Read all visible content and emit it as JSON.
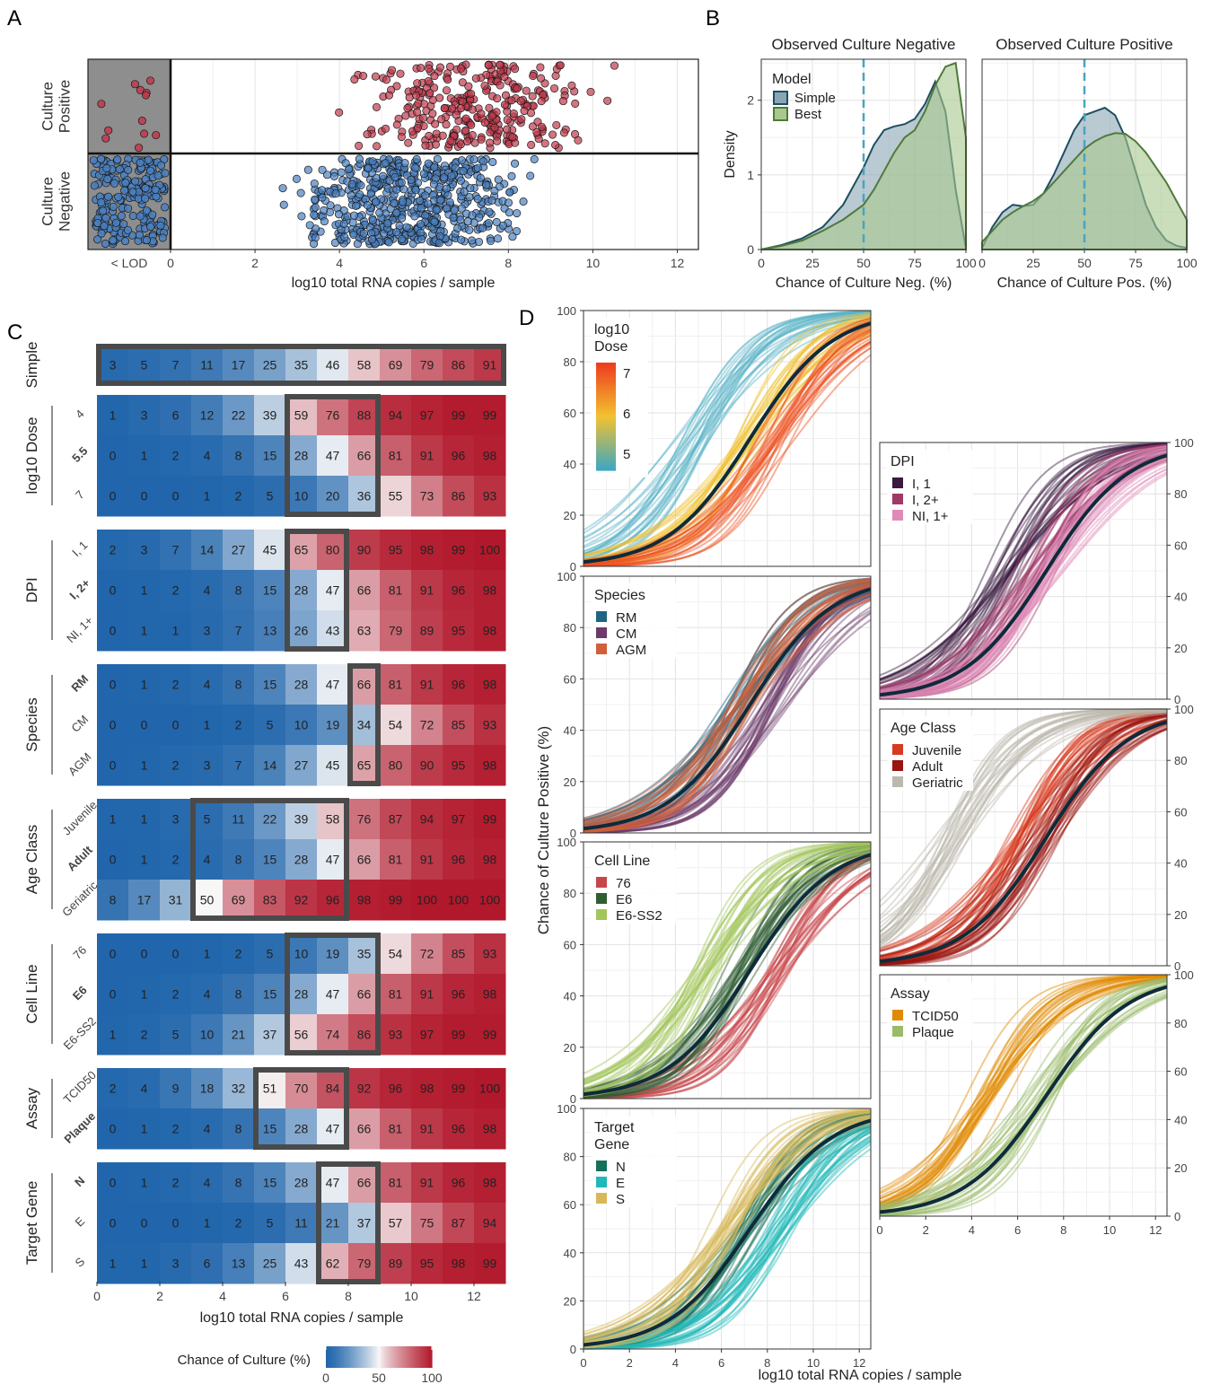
{
  "panel_labels": {
    "a": "A",
    "b": "B",
    "c": "C",
    "d": "D"
  },
  "chart_data": [
    {
      "panel": "A",
      "type": "scatter",
      "xlabel": "log10 total RNA copies / sample",
      "x_ticks": [
        "0",
        "2",
        "4",
        "6",
        "8",
        "10",
        "12"
      ],
      "lod_label": "< LOD",
      "xlim": [
        0,
        12.5
      ],
      "groups": [
        {
          "name": "Culture Positive",
          "label_lines": [
            "Culture",
            "Positive"
          ],
          "color": "#c0394b",
          "below_lod_count": 12,
          "count": 300,
          "x_range": [
            2,
            12.1
          ]
        },
        {
          "name": "Culture Negative",
          "label_lines": [
            "Culture",
            "Negative"
          ],
          "color": "#4a80c0",
          "below_lod_count": 220,
          "count": 560,
          "x_range": [
            0.2,
            11
          ]
        }
      ],
      "colors": {
        "lod_bg": "#8e8e8e",
        "positive": "#c0394b",
        "negative": "#4a80c0"
      }
    },
    {
      "panel": "B",
      "type": "area",
      "facets": [
        "Observed Culture Negative",
        "Observed Culture Positive"
      ],
      "xlabels": [
        "Chance of Culture Neg. (%)",
        "Chance of Culture Pos. (%)"
      ],
      "ylabel": "Density",
      "x_ticks": [
        "0",
        "25",
        "50",
        "75",
        "100"
      ],
      "y_ticks": [
        "0",
        "1",
        "2"
      ],
      "xlim": [
        0,
        100
      ],
      "ylim": [
        0,
        2.55
      ],
      "threshold": 50,
      "legend": {
        "title": "Model",
        "position": "top-left"
      },
      "series": [
        {
          "name": "Simple",
          "color": "#1f4e5f",
          "fill": "#8aa6b5",
          "facet_values": [
            {
              "x": [
                0,
                10,
                20,
                30,
                40,
                45,
                50,
                55,
                60,
                65,
                70,
                75,
                80,
                85,
                90,
                95,
                100
              ],
              "y": [
                0,
                0.06,
                0.15,
                0.3,
                0.6,
                0.85,
                1.1,
                1.4,
                1.6,
                1.65,
                1.68,
                1.75,
                1.95,
                2.25,
                1.85,
                0.8,
                0.02
              ]
            },
            {
              "x": [
                0,
                5,
                10,
                15,
                20,
                25,
                30,
                35,
                40,
                45,
                50,
                55,
                60,
                65,
                70,
                75,
                80,
                85,
                90,
                95,
                100
              ],
              "y": [
                0.02,
                0.3,
                0.5,
                0.6,
                0.58,
                0.6,
                0.75,
                1.0,
                1.3,
                1.6,
                1.8,
                1.85,
                1.9,
                1.8,
                1.5,
                1.05,
                0.6,
                0.3,
                0.12,
                0.05,
                0.02
              ]
            }
          ]
        },
        {
          "name": "Best",
          "color": "#4f7a3a",
          "fill": "#a9c88e",
          "facet_values": [
            {
              "x": [
                0,
                10,
                20,
                30,
                40,
                45,
                50,
                55,
                60,
                65,
                70,
                75,
                80,
                85,
                90,
                95,
                100
              ],
              "y": [
                0,
                0.05,
                0.12,
                0.25,
                0.4,
                0.5,
                0.6,
                0.8,
                1.05,
                1.3,
                1.5,
                1.6,
                1.85,
                2.2,
                2.45,
                2.5,
                1.5
              ]
            },
            {
              "x": [
                0,
                5,
                10,
                15,
                20,
                25,
                30,
                35,
                40,
                45,
                50,
                55,
                60,
                65,
                70,
                75,
                80,
                85,
                90,
                95,
                100
              ],
              "y": [
                0.1,
                0.25,
                0.4,
                0.5,
                0.58,
                0.65,
                0.75,
                0.9,
                1.05,
                1.2,
                1.35,
                1.45,
                1.52,
                1.56,
                1.55,
                1.45,
                1.3,
                1.1,
                0.9,
                0.65,
                0.4
              ]
            }
          ]
        }
      ]
    },
    {
      "panel": "C",
      "type": "heatmap",
      "xlabel": "log10 total RNA copies / sample",
      "x_ticks": [
        "0",
        "2",
        "4",
        "6",
        "8",
        "10",
        "12"
      ],
      "legend": {
        "title": "Chance of Culture (%)",
        "ticks": [
          "0",
          "50",
          "100"
        ]
      },
      "groups": [
        {
          "name": "Simple",
          "rows": [
            {
              "label": "",
              "bold": false,
              "values": [
                3,
                5,
                7,
                11,
                17,
                25,
                35,
                46,
                58,
                69,
                79,
                86,
                91
              ]
            }
          ],
          "box": [
            0,
            13
          ]
        },
        {
          "name": "log10 Dose",
          "rows": [
            {
              "label": "4",
              "bold": false,
              "values": [
                1,
                3,
                6,
                12,
                22,
                39,
                59,
                76,
                88,
                94,
                97,
                99,
                99
              ]
            },
            {
              "label": "5.5",
              "bold": true,
              "values": [
                0,
                1,
                2,
                4,
                8,
                15,
                28,
                47,
                66,
                81,
                91,
                96,
                98
              ]
            },
            {
              "label": "7",
              "bold": false,
              "values": [
                0,
                0,
                0,
                1,
                2,
                5,
                10,
                20,
                36,
                55,
                73,
                86,
                93
              ]
            }
          ],
          "box": [
            6,
            9
          ]
        },
        {
          "name": "DPI",
          "rows": [
            {
              "label": "I, 1",
              "bold": false,
              "values": [
                2,
                3,
                7,
                14,
                27,
                45,
                65,
                80,
                90,
                95,
                98,
                99,
                100
              ]
            },
            {
              "label": "I, 2+",
              "bold": true,
              "values": [
                0,
                1,
                2,
                4,
                8,
                15,
                28,
                47,
                66,
                81,
                91,
                96,
                98
              ]
            },
            {
              "label": "NI, 1+",
              "bold": false,
              "values": [
                0,
                1,
                1,
                3,
                7,
                13,
                26,
                43,
                63,
                79,
                89,
                95,
                98
              ]
            }
          ],
          "box": [
            6,
            8
          ]
        },
        {
          "name": "Species",
          "rows": [
            {
              "label": "RM",
              "bold": true,
              "values": [
                0,
                1,
                2,
                4,
                8,
                15,
                28,
                47,
                66,
                81,
                91,
                96,
                98
              ]
            },
            {
              "label": "CM",
              "bold": false,
              "values": [
                0,
                0,
                0,
                1,
                2,
                5,
                10,
                19,
                34,
                54,
                72,
                85,
                93
              ]
            },
            {
              "label": "AGM",
              "bold": false,
              "values": [
                0,
                1,
                2,
                3,
                7,
                14,
                27,
                45,
                65,
                80,
                90,
                95,
                98
              ]
            }
          ],
          "box": [
            8,
            9
          ]
        },
        {
          "name": "Age Class",
          "rows": [
            {
              "label": "Juvenile",
              "bold": false,
              "values": [
                1,
                1,
                3,
                5,
                11,
                22,
                39,
                58,
                76,
                87,
                94,
                97,
                99
              ]
            },
            {
              "label": "Adult",
              "bold": true,
              "values": [
                0,
                1,
                2,
                4,
                8,
                15,
                28,
                47,
                66,
                81,
                91,
                96,
                98
              ]
            },
            {
              "label": "Geriatric",
              "bold": false,
              "values": [
                8,
                17,
                31,
                50,
                69,
                83,
                92,
                96,
                98,
                99,
                100,
                100,
                100
              ]
            }
          ],
          "box": [
            3,
            8
          ]
        },
        {
          "name": "Cell Line",
          "rows": [
            {
              "label": "76",
              "bold": false,
              "values": [
                0,
                0,
                0,
                1,
                2,
                5,
                10,
                19,
                35,
                54,
                72,
                85,
                93
              ]
            },
            {
              "label": "E6",
              "bold": true,
              "values": [
                0,
                1,
                2,
                4,
                8,
                15,
                28,
                47,
                66,
                81,
                91,
                96,
                98
              ]
            },
            {
              "label": "E6-SS2",
              "bold": false,
              "values": [
                1,
                2,
                5,
                10,
                21,
                37,
                56,
                74,
                86,
                93,
                97,
                99,
                99
              ]
            }
          ],
          "box": [
            6,
            9
          ]
        },
        {
          "name": "Assay",
          "rows": [
            {
              "label": "TCID50",
              "bold": false,
              "values": [
                2,
                4,
                9,
                18,
                32,
                51,
                70,
                84,
                92,
                96,
                98,
                99,
                100
              ]
            },
            {
              "label": "Plaque",
              "bold": true,
              "values": [
                0,
                1,
                2,
                4,
                8,
                15,
                28,
                47,
                66,
                81,
                91,
                96,
                98
              ]
            }
          ],
          "box": [
            5,
            8
          ]
        },
        {
          "name": "Target Gene",
          "rows": [
            {
              "label": "N",
              "bold": true,
              "values": [
                0,
                1,
                2,
                4,
                8,
                15,
                28,
                47,
                66,
                81,
                91,
                96,
                98
              ]
            },
            {
              "label": "E",
              "bold": false,
              "values": [
                0,
                0,
                0,
                1,
                2,
                5,
                11,
                21,
                37,
                57,
                75,
                87,
                94
              ]
            },
            {
              "label": "S",
              "bold": false,
              "values": [
                1,
                1,
                3,
                6,
                13,
                25,
                43,
                62,
                79,
                89,
                95,
                98,
                99
              ]
            }
          ],
          "box": [
            7,
            9
          ]
        }
      ]
    },
    {
      "panel": "D",
      "type": "line",
      "xlabel": "log10 total RNA copies / sample",
      "ylabel": "Chance of Culture Positive (%)",
      "x_ticks": [
        "0",
        "2",
        "4",
        "6",
        "8",
        "10",
        "12"
      ],
      "y_ticks": [
        "0",
        "20",
        "40",
        "60",
        "80",
        "100"
      ],
      "xlim": [
        0,
        12.5
      ],
      "ylim": [
        0,
        100
      ],
      "reference_curve": {
        "color": "#0d2b3a",
        "midpoint": 7.25,
        "slope": 0.56
      },
      "facets": [
        {
          "legend_title_lines": [
            "log10",
            "Dose"
          ],
          "legend_type": "gradient",
          "gradient_ticks": [
            "5",
            "6",
            "7"
          ],
          "colors": [
            "#3fa7c0",
            "#f2c230",
            "#ee3c1f"
          ],
          "groups": [
            {
              "name": "5",
              "color": "#5ab4c8",
              "midpoint": 4.8
            },
            {
              "name": "6",
              "color": "#f0c030",
              "midpoint": 7.2
            },
            {
              "name": "7",
              "color": "#ee5020",
              "midpoint": 8.3
            }
          ]
        },
        {
          "legend_title_lines": [
            "Species"
          ],
          "groups": [
            {
              "name": "RM",
              "color": "#1f6480",
              "midpoint": 6.8
            },
            {
              "name": "CM",
              "color": "#6d3b6b",
              "midpoint": 8.3
            },
            {
              "name": "AGM",
              "color": "#d0603a",
              "midpoint": 6.9
            }
          ]
        },
        {
          "legend_title_lines": [
            "Cell Line"
          ],
          "groups": [
            {
              "name": "76",
              "color": "#c8454a",
              "midpoint": 8.4
            },
            {
              "name": "E6",
              "color": "#2e5e32",
              "midpoint": 6.9
            },
            {
              "name": "E6-SS2",
              "color": "#a2c65a",
              "midpoint": 5.4
            }
          ]
        },
        {
          "legend_title_lines": [
            "Target",
            "Gene"
          ],
          "groups": [
            {
              "name": "N",
              "color": "#16705a",
              "midpoint": 7.0
            },
            {
              "name": "E",
              "color": "#20b8b8",
              "midpoint": 8.6
            },
            {
              "name": "S",
              "color": "#d8b858",
              "midpoint": 6.3
            }
          ]
        },
        {
          "legend_title_lines": [
            "DPI"
          ],
          "groups": [
            {
              "name": "I, 1",
              "color": "#3a1a40",
              "midpoint": 5.5
            },
            {
              "name": "I, 2+",
              "color": "#a03868",
              "midpoint": 6.8
            },
            {
              "name": "NI, 1+",
              "color": "#e08ab8",
              "midpoint": 7.3
            }
          ]
        },
        {
          "legend_title_lines": [
            "Age Class"
          ],
          "groups": [
            {
              "name": "Juvenile",
              "color": "#d63a20",
              "midpoint": 6.4
            },
            {
              "name": "Adult",
              "color": "#9a1410",
              "midpoint": 7.2
            },
            {
              "name": "Geriatric",
              "color": "#bdb8ae",
              "midpoint": 3.2
            }
          ]
        },
        {
          "legend_title_lines": [
            "Assay"
          ],
          "groups": [
            {
              "name": "TCID50",
              "color": "#e08a00",
              "midpoint": 4.6
            },
            {
              "name": "Plaque",
              "color": "#9abb6a",
              "midpoint": 7.1
            }
          ]
        }
      ]
    }
  ]
}
